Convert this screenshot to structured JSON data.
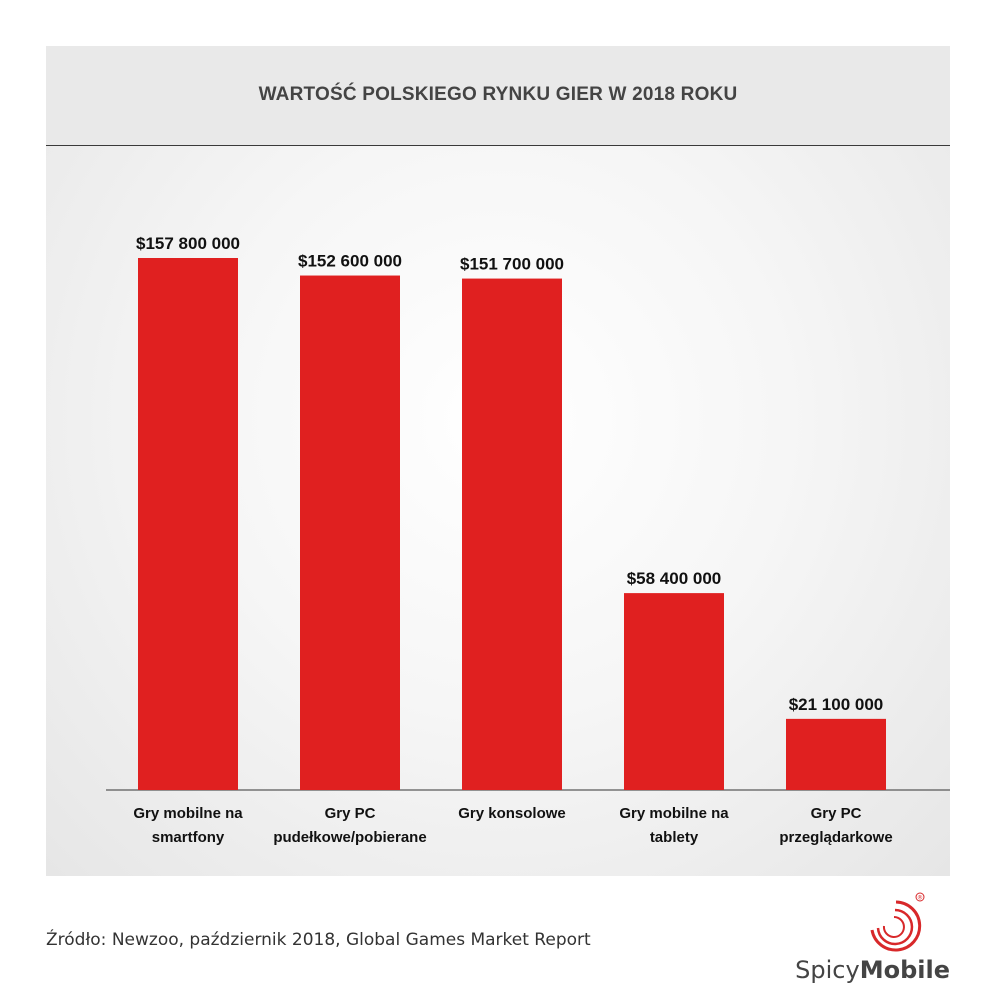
{
  "chart_data": {
    "type": "bar",
    "title": "WARTOŚĆ POLSKIEGO RYNKU GIER W 2018 ROKU",
    "categories": [
      [
        "Gry mobilne na",
        "smartfony"
      ],
      [
        "Gry PC",
        "pudełkowe/pobierane"
      ],
      [
        "Gry konsolowe"
      ],
      [
        "Gry mobilne na",
        "tablety"
      ],
      [
        "Gry PC",
        "przeglądarkowe"
      ]
    ],
    "values": [
      157800000,
      152600000,
      151700000,
      58400000,
      21100000
    ],
    "value_labels": [
      "$157 800 000",
      "$152 600 000",
      "$151 700 000",
      "$58 400 000",
      "$21 100 000"
    ],
    "xlabel": "",
    "ylabel": "",
    "ylim": [
      0,
      157800000
    ],
    "grid": false,
    "legend": "none",
    "bar_color": "#e02020"
  },
  "source": "Źródło: Newzoo, październik 2018, Global Games Market Report",
  "brand": {
    "name_light": "Spicy",
    "name_bold": "Mobile",
    "registered": "®",
    "icon": "spiral-logo-icon",
    "accent": "#d8282a"
  }
}
